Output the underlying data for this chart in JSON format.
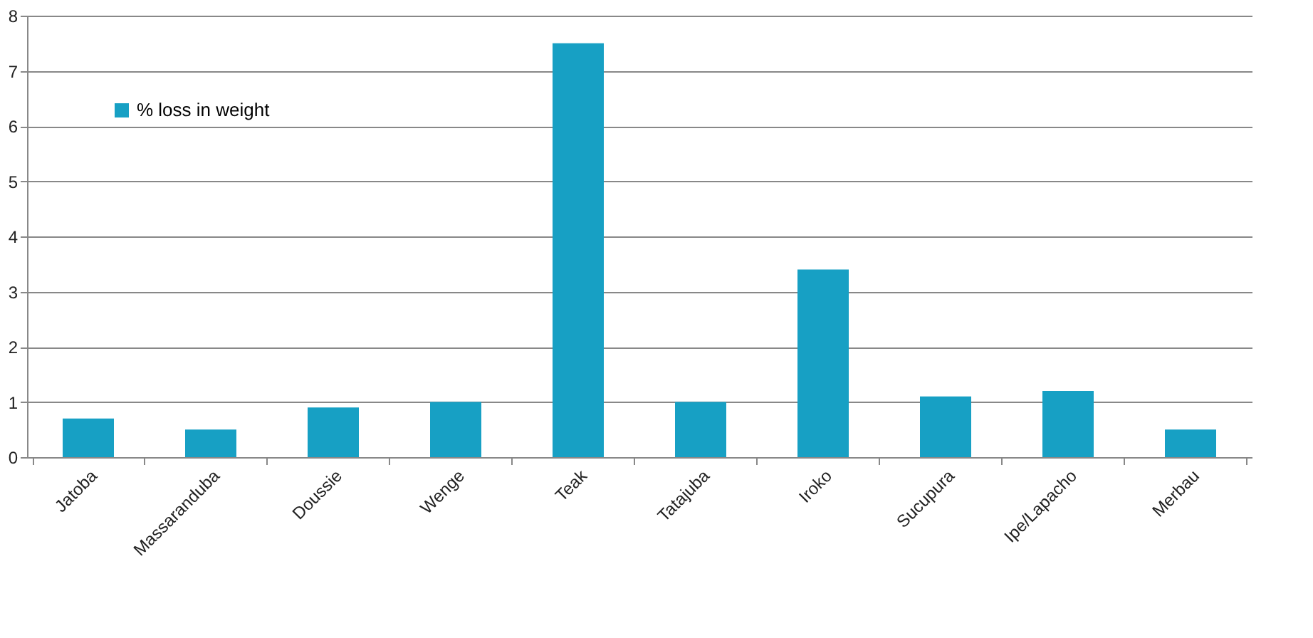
{
  "chart_data": {
    "type": "bar",
    "categories": [
      "Jatoba",
      "Massaranduba",
      "Doussie",
      "Wenge",
      "Teak",
      "Tatajuba",
      "Iroko",
      "Sucupura",
      "Ipe/Lapacho",
      "Merbau"
    ],
    "series": [
      {
        "name": "% loss in weight",
        "color": "#17a0c4",
        "values": [
          0.7,
          0.5,
          0.9,
          1.0,
          7.5,
          1.0,
          3.4,
          1.1,
          1.2,
          0.5
        ]
      }
    ],
    "ylim": [
      0,
      8
    ],
    "yticks": [
      0,
      1,
      2,
      3,
      4,
      5,
      6,
      7,
      8
    ],
    "grid": "y",
    "legend": "top left"
  }
}
